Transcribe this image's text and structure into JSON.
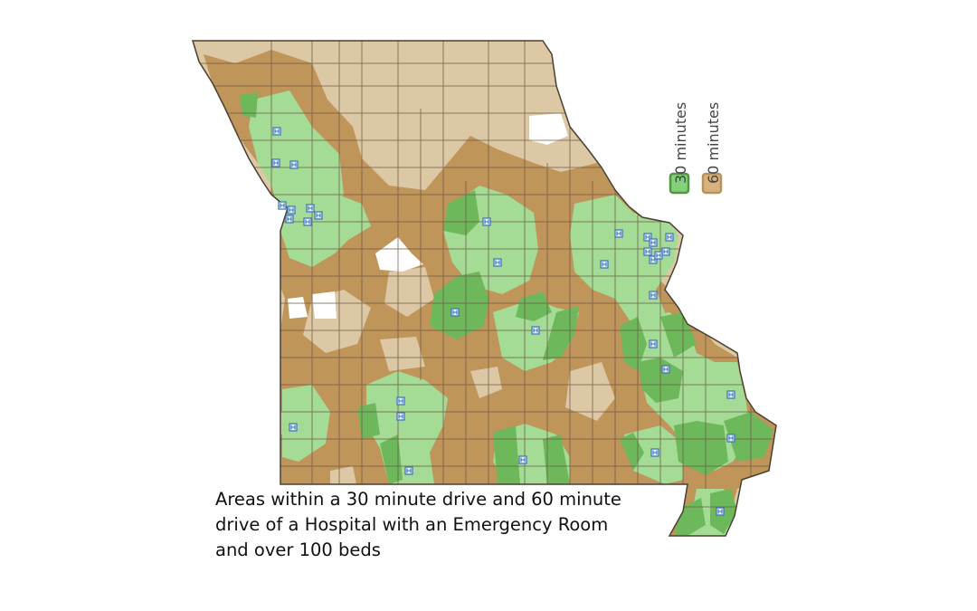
{
  "legend": {
    "items": [
      {
        "label": "30 minutes",
        "color": "#86cf7c",
        "border": "#4e9a3e"
      },
      {
        "label": "60 minutes",
        "color": "#d8b27c",
        "border": "#b8925a"
      }
    ]
  },
  "caption": {
    "lines": [
      "Areas within a 30 minute drive and 60 minute",
      "drive of a Hospital with an Emergency Room",
      "and over 100 beds"
    ]
  },
  "colors": {
    "light_tan": "#dcc8a4",
    "dark_tan": "#c0955a",
    "light_green": "#a4dc96",
    "dark_green": "#6cb85a",
    "border": "#6b5a44",
    "hospital_marker": "#3a6fb8",
    "uncovered": "#ffffff"
  },
  "hospital_icon": "hospital-h-icon"
}
